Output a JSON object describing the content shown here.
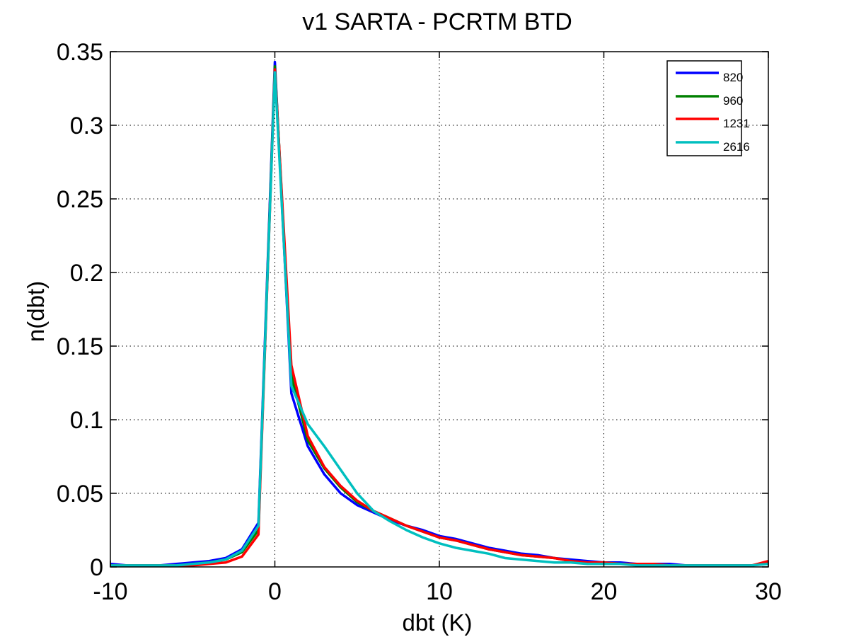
{
  "chart_data": {
    "type": "line",
    "title": "v1 SARTA - PCRTM BTD",
    "xlabel": "dbt (K)",
    "ylabel": "n(dbt)",
    "xlim": [
      -10,
      30
    ],
    "ylim": [
      0,
      0.35
    ],
    "xticks": [
      -10,
      0,
      10,
      20,
      30
    ],
    "xtick_labels": [
      "-10",
      "0",
      "10",
      "20",
      "30"
    ],
    "yticks": [
      0,
      0.05,
      0.1,
      0.15,
      0.2,
      0.25,
      0.3,
      0.35
    ],
    "ytick_labels": [
      "0",
      "0.05",
      "0.1",
      "0.15",
      "0.2",
      "0.25",
      "0.3",
      "0.35"
    ],
    "grid": true,
    "legend_position": "top-right",
    "series": [
      {
        "name": "820",
        "color": "#0000ff",
        "x": [
          -10,
          -9,
          -8,
          -7,
          -6,
          -5,
          -4,
          -3,
          -2,
          -1,
          0,
          1,
          2,
          3,
          4,
          5,
          6,
          7,
          8,
          9,
          10,
          11,
          12,
          13,
          14,
          15,
          16,
          17,
          18,
          19,
          20,
          21,
          22,
          23,
          24,
          25,
          26,
          27,
          28,
          29,
          30
        ],
        "y": [
          0.002,
          0.001,
          0.001,
          0.001,
          0.002,
          0.003,
          0.004,
          0.006,
          0.012,
          0.03,
          0.343,
          0.118,
          0.082,
          0.063,
          0.05,
          0.042,
          0.037,
          0.032,
          0.028,
          0.025,
          0.021,
          0.019,
          0.016,
          0.013,
          0.011,
          0.009,
          0.008,
          0.006,
          0.005,
          0.004,
          0.003,
          0.003,
          0.002,
          0.002,
          0.002,
          0.001,
          0.001,
          0.001,
          0.001,
          0.001,
          0.003
        ]
      },
      {
        "name": "960",
        "color": "#008000",
        "x": [
          -10,
          -9,
          -8,
          -7,
          -6,
          -5,
          -4,
          -3,
          -2,
          -1,
          0,
          1,
          2,
          3,
          4,
          5,
          6,
          7,
          8,
          9,
          10,
          11,
          12,
          13,
          14,
          15,
          16,
          17,
          18,
          19,
          20,
          21,
          22,
          23,
          24,
          25,
          26,
          27,
          28,
          29,
          30
        ],
        "y": [
          0.001,
          0.001,
          0.001,
          0.001,
          0.001,
          0.002,
          0.003,
          0.005,
          0.01,
          0.025,
          0.34,
          0.13,
          0.086,
          0.067,
          0.054,
          0.044,
          0.038,
          0.033,
          0.028,
          0.024,
          0.02,
          0.018,
          0.015,
          0.012,
          0.01,
          0.008,
          0.007,
          0.006,
          0.004,
          0.003,
          0.003,
          0.002,
          0.002,
          0.002,
          0.001,
          0.001,
          0.001,
          0.001,
          0.001,
          0.001,
          0.003
        ]
      },
      {
        "name": "1231",
        "color": "#ff0000",
        "x": [
          -10,
          -9,
          -8,
          -7,
          -6,
          -5,
          -4,
          -3,
          -2,
          -1,
          0,
          1,
          2,
          3,
          4,
          5,
          6,
          7,
          8,
          9,
          10,
          11,
          12,
          13,
          14,
          15,
          16,
          17,
          18,
          19,
          20,
          21,
          22,
          23,
          24,
          25,
          26,
          27,
          28,
          29,
          30
        ],
        "y": [
          0.001,
          0.001,
          0.001,
          0.001,
          0.001,
          0.001,
          0.002,
          0.003,
          0.007,
          0.022,
          0.338,
          0.137,
          0.089,
          0.068,
          0.055,
          0.045,
          0.038,
          0.033,
          0.028,
          0.024,
          0.02,
          0.018,
          0.015,
          0.012,
          0.01,
          0.008,
          0.007,
          0.006,
          0.004,
          0.003,
          0.003,
          0.002,
          0.002,
          0.002,
          0.001,
          0.001,
          0.001,
          0.001,
          0.001,
          0.001,
          0.004
        ]
      },
      {
        "name": "2616",
        "color": "#00bfbf",
        "x": [
          -10,
          -9,
          -8,
          -7,
          -6,
          -5,
          -4,
          -3,
          -2,
          -1,
          0,
          1,
          2,
          3,
          4,
          5,
          6,
          7,
          8,
          9,
          10,
          11,
          12,
          13,
          14,
          15,
          16,
          17,
          18,
          19,
          20,
          21,
          22,
          23,
          24,
          25,
          26,
          27,
          28,
          29,
          30
        ],
        "y": [
          0.001,
          0.001,
          0.001,
          0.001,
          0.001,
          0.002,
          0.003,
          0.005,
          0.011,
          0.028,
          0.336,
          0.123,
          0.097,
          0.082,
          0.066,
          0.05,
          0.038,
          0.031,
          0.025,
          0.02,
          0.016,
          0.013,
          0.011,
          0.009,
          0.006,
          0.005,
          0.004,
          0.003,
          0.003,
          0.002,
          0.002,
          0.002,
          0.001,
          0.001,
          0.001,
          0.001,
          0.001,
          0.001,
          0.001,
          0.001,
          0.002
        ]
      }
    ]
  }
}
